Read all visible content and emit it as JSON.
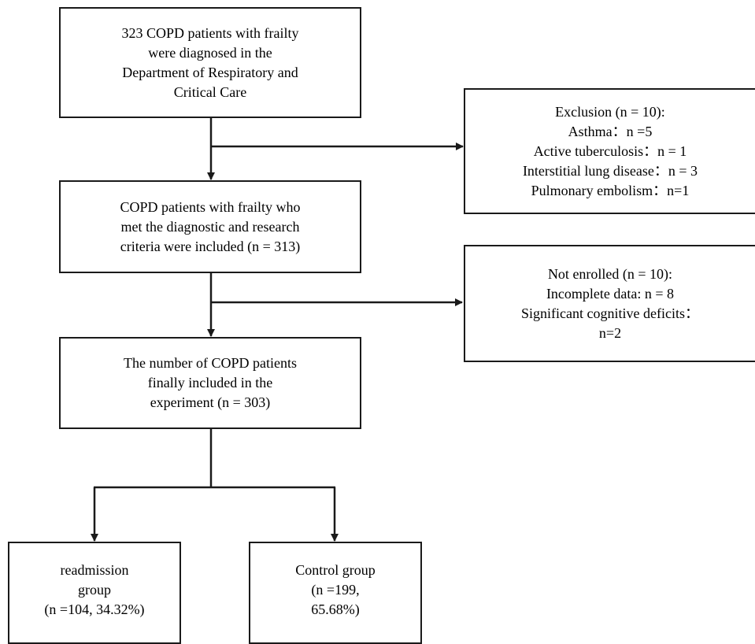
{
  "boxes": {
    "diagnosed": {
      "lines": [
        "323 COPD patients with frailty",
        "were diagnosed in the",
        "Department of Respiratory and",
        "Critical Care"
      ]
    },
    "exclusion": {
      "lines": [
        "Exclusion (n = 10):",
        "Asthma：n =5",
        "Active tuberculosis：n = 1",
        "Interstitial lung disease：n = 3",
        "Pulmonary embolism：n=1"
      ]
    },
    "included": {
      "lines": [
        "COPD patients with frailty who",
        "met the diagnostic and research",
        "criteria were included (n = 313)"
      ]
    },
    "not_enrolled": {
      "lines": [
        "Not enrolled (n = 10):",
        "Incomplete data: n = 8",
        "Significant cognitive deficits：",
        "n=2"
      ]
    },
    "final": {
      "lines": [
        "The number of COPD patients",
        "finally included in the",
        "experiment (n = 303)"
      ]
    },
    "readmission": {
      "lines": [
        "readmission",
        "group",
        "(n =104, 34.32%)"
      ]
    },
    "control": {
      "lines": [
        "Control group",
        "(n =199,",
        "65.68%)"
      ]
    }
  },
  "colors": {
    "line": "#1a1a1a",
    "background": "#ffffff"
  }
}
